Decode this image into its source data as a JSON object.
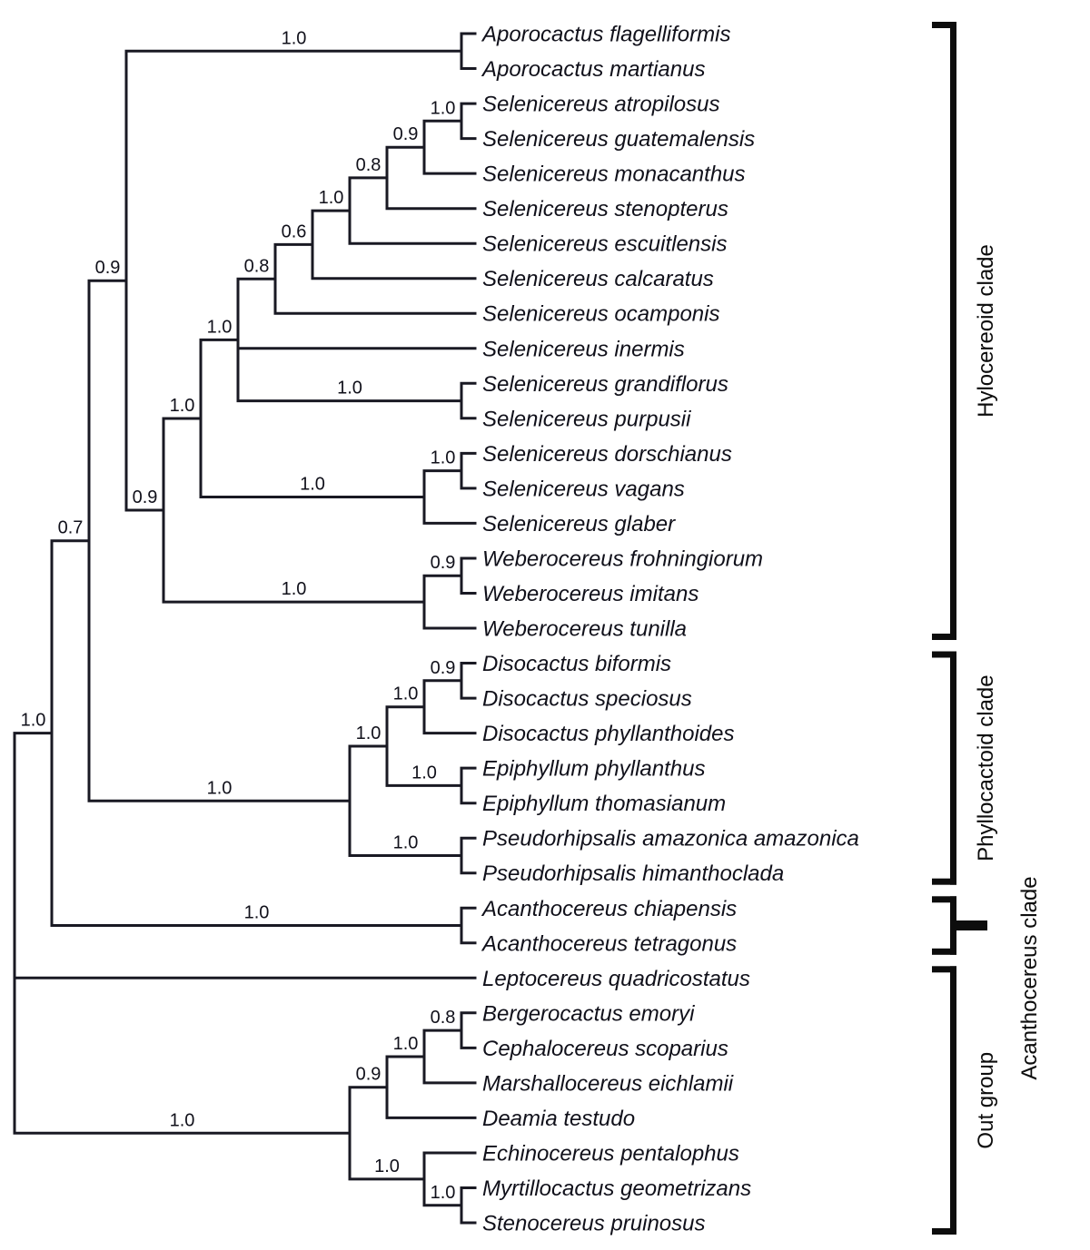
{
  "figure": {
    "type": "phylogenetic-cladogram",
    "background": "#ffffff",
    "line_color": "#191923",
    "bracket_color": "#0d0d0d",
    "text_color": "#10101a"
  },
  "tree": {
    "support": null,
    "children": [
      {
        "support": "1.0",
        "children": [
          {
            "support": "0.7",
            "children": [
              {
                "support": "0.9",
                "children": [
                  {
                    "support": "1.0",
                    "children": [
                      {
                        "name": "Aporocactus flagelliformis"
                      },
                      {
                        "name": "Aporocactus martianus"
                      }
                    ]
                  },
                  {
                    "support": "0.9",
                    "children": [
                      {
                        "support": "1.0",
                        "children": [
                          {
                            "support": "1.0",
                            "children": [
                              {
                                "support": "0.8",
                                "children": [
                                  {
                                    "support": "0.6",
                                    "children": [
                                      {
                                        "support": "1.0",
                                        "children": [
                                          {
                                            "support": "0.8",
                                            "children": [
                                              {
                                                "support": "0.9",
                                                "children": [
                                                  {
                                                    "support": "1.0",
                                                    "children": [
                                                      {
                                                        "name": "Selenicereus atropilosus"
                                                      },
                                                      {
                                                        "name": "Selenicereus guatemalensis"
                                                      }
                                                    ]
                                                  },
                                                  {
                                                    "name": "Selenicereus monacanthus"
                                                  }
                                                ]
                                              },
                                              {
                                                "name": "Selenicereus stenopterus"
                                              }
                                            ]
                                          },
                                          {
                                            "name": "Selenicereus escuitlensis"
                                          }
                                        ]
                                      },
                                      {
                                        "name": "Selenicereus calcaratus"
                                      }
                                    ]
                                  },
                                  {
                                    "name": "Selenicereus ocamponis"
                                  }
                                ]
                              },
                              {
                                "name": "Selenicereus inermis"
                              },
                              {
                                "support": "1.0",
                                "children": [
                                  {
                                    "name": "Selenicereus grandiflorus"
                                  },
                                  {
                                    "name": "Selenicereus purpusii"
                                  }
                                ]
                              }
                            ]
                          },
                          {
                            "support": "1.0",
                            "children": [
                              {
                                "support": "1.0",
                                "children": [
                                  {
                                    "name": "Selenicereus dorschianus"
                                  },
                                  {
                                    "name": "Selenicereus vagans"
                                  }
                                ]
                              },
                              {
                                "name": "Selenicereus glaber"
                              }
                            ]
                          }
                        ]
                      },
                      {
                        "support": "1.0",
                        "children": [
                          {
                            "support": "0.9",
                            "children": [
                              {
                                "name": "Weberocereus frohningiorum"
                              },
                              {
                                "name": "Weberocereus imitans"
                              }
                            ]
                          },
                          {
                            "name": "Weberocereus tunilla"
                          }
                        ]
                      }
                    ]
                  }
                ]
              },
              {
                "support": "1.0",
                "children": [
                  {
                    "support": "1.0",
                    "children": [
                      {
                        "support": "1.0",
                        "children": [
                          {
                            "support": "0.9",
                            "children": [
                              {
                                "name": "Disocactus biformis"
                              },
                              {
                                "name": "Disocactus speciosus"
                              }
                            ]
                          },
                          {
                            "name": "Disocactus phyllanthoides"
                          }
                        ]
                      },
                      {
                        "support": "1.0",
                        "children": [
                          {
                            "name": "Epiphyllum phyllanthus"
                          },
                          {
                            "name": "Epiphyllum thomasianum"
                          }
                        ]
                      }
                    ]
                  },
                  {
                    "support": "1.0",
                    "children": [
                      {
                        "name": "Pseudorhipsalis amazonica amazonica"
                      },
                      {
                        "name": "Pseudorhipsalis himanthoclada"
                      }
                    ]
                  }
                ]
              }
            ]
          },
          {
            "support": "1.0",
            "children": [
              {
                "name": "Acanthocereus chiapensis"
              },
              {
                "name": "Acanthocereus tetragonus"
              }
            ]
          }
        ]
      },
      {
        "name": "Leptocereus quadricostatus"
      },
      {
        "support": "1.0",
        "children": [
          {
            "support": "0.9",
            "children": [
              {
                "support": "1.0",
                "children": [
                  {
                    "support": "0.8",
                    "children": [
                      {
                        "name": "Bergerocactus emoryi"
                      },
                      {
                        "name": "Cephalocereus scoparius"
                      }
                    ]
                  },
                  {
                    "name": "Marshallocereus eichlamii"
                  }
                ]
              },
              {
                "name": "Deamia testudo"
              }
            ]
          },
          {
            "support": "1.0",
            "children": [
              {
                "name": "Echinocereus pentalophus"
              },
              {
                "support": "1.0",
                "children": [
                  {
                    "name": "Myrtillocactus geometrizans"
                  },
                  {
                    "name": "Stenocereus pruinosus"
                  }
                ]
              }
            ]
          }
        ]
      }
    ]
  },
  "clades": [
    {
      "label": "Hylocereoid clade",
      "first_row": 0,
      "last_row": 17,
      "connector": false
    },
    {
      "label": "Phyllocactoid clade",
      "first_row": 18,
      "last_row": 24,
      "connector": false
    },
    {
      "label": "Acanthocereus clade",
      "first_row": 25,
      "last_row": 26,
      "connector": true
    },
    {
      "label": "Out group",
      "first_row": 27,
      "last_row": 34,
      "connector": false
    }
  ]
}
